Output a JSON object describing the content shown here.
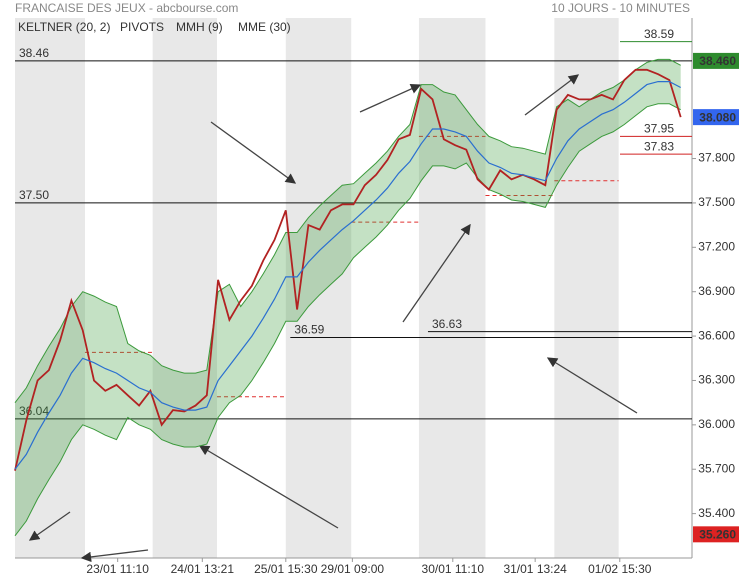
{
  "header": {
    "title": "FRANCAISE DES JEUX - abcbourse.com",
    "period": "10 JOURS - 10 MINUTES"
  },
  "chart_data": {
    "type": "line",
    "x": [
      0,
      1,
      2,
      3,
      4,
      5,
      6,
      7,
      8,
      9,
      10,
      11,
      12,
      13,
      14,
      15,
      16,
      17,
      18,
      19,
      20,
      21,
      22,
      23,
      24,
      25,
      26,
      27,
      28,
      29,
      30,
      31,
      32,
      33,
      34,
      35,
      36,
      37,
      38,
      39,
      40,
      41,
      42,
      43,
      44,
      45,
      46,
      47,
      48,
      49,
      50,
      51,
      52,
      53,
      54,
      55,
      56,
      57,
      58,
      59
    ],
    "xlim": [
      0,
      60
    ],
    "xticks": [
      {
        "value": 9.1,
        "label": "23/01 11:10"
      },
      {
        "value": 16.6,
        "label": "24/01 13:21"
      },
      {
        "value": 24,
        "label": "25/01 15:30"
      },
      {
        "value": 29.9,
        "label": "29/01 09:00"
      },
      {
        "value": 38.8,
        "label": "30/01 11:10"
      },
      {
        "value": 46.1,
        "label": "31/01 13:24"
      },
      {
        "value": 53.6,
        "label": "01/02 15:30"
      }
    ],
    "ylim": [
      35.1,
      38.75
    ],
    "yticks": [
      {
        "value": 35.4,
        "label": "35.400"
      },
      {
        "value": 35.7,
        "label": "35.700"
      },
      {
        "value": 36,
        "label": "36.000"
      },
      {
        "value": 36.3,
        "label": "36.300"
      },
      {
        "value": 36.6,
        "label": "36.600"
      },
      {
        "value": 36.9,
        "label": "36.900"
      },
      {
        "value": 37.2,
        "label": "37.200"
      },
      {
        "value": 37.5,
        "label": "37.500"
      },
      {
        "value": 37.8,
        "label": "37.800"
      }
    ],
    "day_bands": [
      [
        0,
        6.2
      ],
      [
        12.2,
        17.9
      ],
      [
        24,
        29.8
      ],
      [
        35.8,
        41.7
      ],
      [
        47.8,
        53.5
      ]
    ],
    "series": [
      {
        "name": "KELTNER (20, 2)",
        "color": "#3c9a3c",
        "upper": [
          36.15,
          36.25,
          36.4,
          36.53,
          36.65,
          36.8,
          36.9,
          36.87,
          36.83,
          36.8,
          36.55,
          36.5,
          36.47,
          36.4,
          36.37,
          36.35,
          36.35,
          36.37,
          36.9,
          36.95,
          36.8,
          36.9,
          37.02,
          37.15,
          37.3,
          37.3,
          37.4,
          37.48,
          37.55,
          37.62,
          37.63,
          37.7,
          37.77,
          37.85,
          37.95,
          38.03,
          38.3,
          38.3,
          38.25,
          38.23,
          38.13,
          38.03,
          37.95,
          37.92,
          37.88,
          37.87,
          37.85,
          37.83,
          38.15,
          38.2,
          38.15,
          38.2,
          38.25,
          38.28,
          38.33,
          38.4,
          38.45,
          38.47,
          38.47,
          38.43
        ],
        "lower": [
          35.25,
          35.35,
          35.5,
          35.63,
          35.75,
          35.9,
          36.0,
          35.97,
          35.93,
          35.9,
          36.05,
          36.0,
          35.97,
          35.9,
          35.87,
          35.85,
          35.85,
          35.87,
          36.05,
          36.15,
          36.2,
          36.3,
          36.42,
          36.55,
          36.7,
          36.7,
          36.8,
          36.88,
          36.95,
          37.02,
          37.13,
          37.2,
          37.27,
          37.35,
          37.45,
          37.53,
          37.65,
          37.75,
          37.75,
          37.73,
          37.77,
          37.67,
          37.59,
          37.56,
          37.52,
          37.51,
          37.49,
          37.47,
          37.62,
          37.74,
          37.85,
          37.9,
          37.95,
          37.98,
          38.03,
          38.09,
          38.15,
          38.17,
          38.17,
          38.13
        ]
      },
      {
        "name": "MMH (9)",
        "color": "#b22222",
        "values": [
          35.69,
          36.03,
          36.3,
          36.37,
          36.57,
          36.84,
          36.64,
          36.3,
          36.23,
          36.27,
          36.2,
          36.13,
          36.23,
          36.0,
          36.1,
          36.09,
          36.13,
          36.2,
          36.98,
          36.71,
          36.84,
          36.94,
          37.11,
          37.25,
          37.45,
          36.78,
          37.35,
          37.32,
          37.45,
          37.49,
          37.49,
          37.62,
          37.69,
          37.79,
          37.93,
          37.96,
          38.27,
          38.2,
          37.93,
          37.89,
          37.86,
          37.66,
          37.59,
          37.72,
          37.66,
          37.69,
          37.66,
          37.62,
          38.13,
          38.23,
          38.2,
          38.2,
          38.23,
          38.2,
          38.33,
          38.4,
          38.4,
          38.37,
          38.33,
          38.08
        ]
      },
      {
        "name": "MME (30)",
        "color": "#2a6fd0",
        "values": [
          35.7,
          35.8,
          35.95,
          36.08,
          36.2,
          36.35,
          36.45,
          36.42,
          36.38,
          36.35,
          36.3,
          36.25,
          36.22,
          36.15,
          36.12,
          36.1,
          36.1,
          36.12,
          36.3,
          36.4,
          36.5,
          36.6,
          36.72,
          36.85,
          37.0,
          37.0,
          37.1,
          37.18,
          37.25,
          37.32,
          37.38,
          37.45,
          37.52,
          37.6,
          37.7,
          37.78,
          37.9,
          38.0,
          38.0,
          37.98,
          37.95,
          37.85,
          37.77,
          37.74,
          37.7,
          37.69,
          37.67,
          37.65,
          37.8,
          37.92,
          38.0,
          38.05,
          38.1,
          38.13,
          38.18,
          38.24,
          38.3,
          38.32,
          38.32,
          38.28
        ]
      }
    ],
    "pivots": {
      "name": "PIVOTS",
      "color": "#e03030",
      "segments": [
        {
          "x": [
            6.2,
            12.2
          ],
          "value": 36.49
        },
        {
          "x": [
            17.9,
            24
          ],
          "value": 36.19
        },
        {
          "x": [
            29.8,
            35.8
          ],
          "value": 37.37
        },
        {
          "x": [
            35.8,
            41.7
          ],
          "value": 37.95
        },
        {
          "x": [
            41.7,
            47.8
          ],
          "value": 37.55
        },
        {
          "x": [
            47.8,
            53.5
          ],
          "value": 37.65
        }
      ]
    },
    "levels": [
      {
        "value": 38.46,
        "label": "38.46"
      },
      {
        "value": 37.5,
        "label": "37.50"
      },
      {
        "value": 36.04,
        "label": "36.04"
      },
      {
        "value": 36.59,
        "label": "36.59",
        "from": 24.4
      },
      {
        "value": 36.63,
        "label": "36.63",
        "from": 36.6
      }
    ],
    "right_levels": [
      {
        "value": 38.59,
        "label": "38.59",
        "color": "#2e8b2e"
      },
      {
        "value": 37.95,
        "label": "37.95",
        "color": "#d02020"
      },
      {
        "value": 37.83,
        "label": "37.83",
        "color": "#d02020"
      }
    ],
    "price_tags": [
      {
        "value": 38.46,
        "label": "38.460",
        "color": "#2e8b2e"
      },
      {
        "value": 38.08,
        "label": "38.080",
        "color": "#3366ee"
      },
      {
        "value": 35.26,
        "label": "35.260",
        "color": "#dd2222"
      }
    ]
  }
}
